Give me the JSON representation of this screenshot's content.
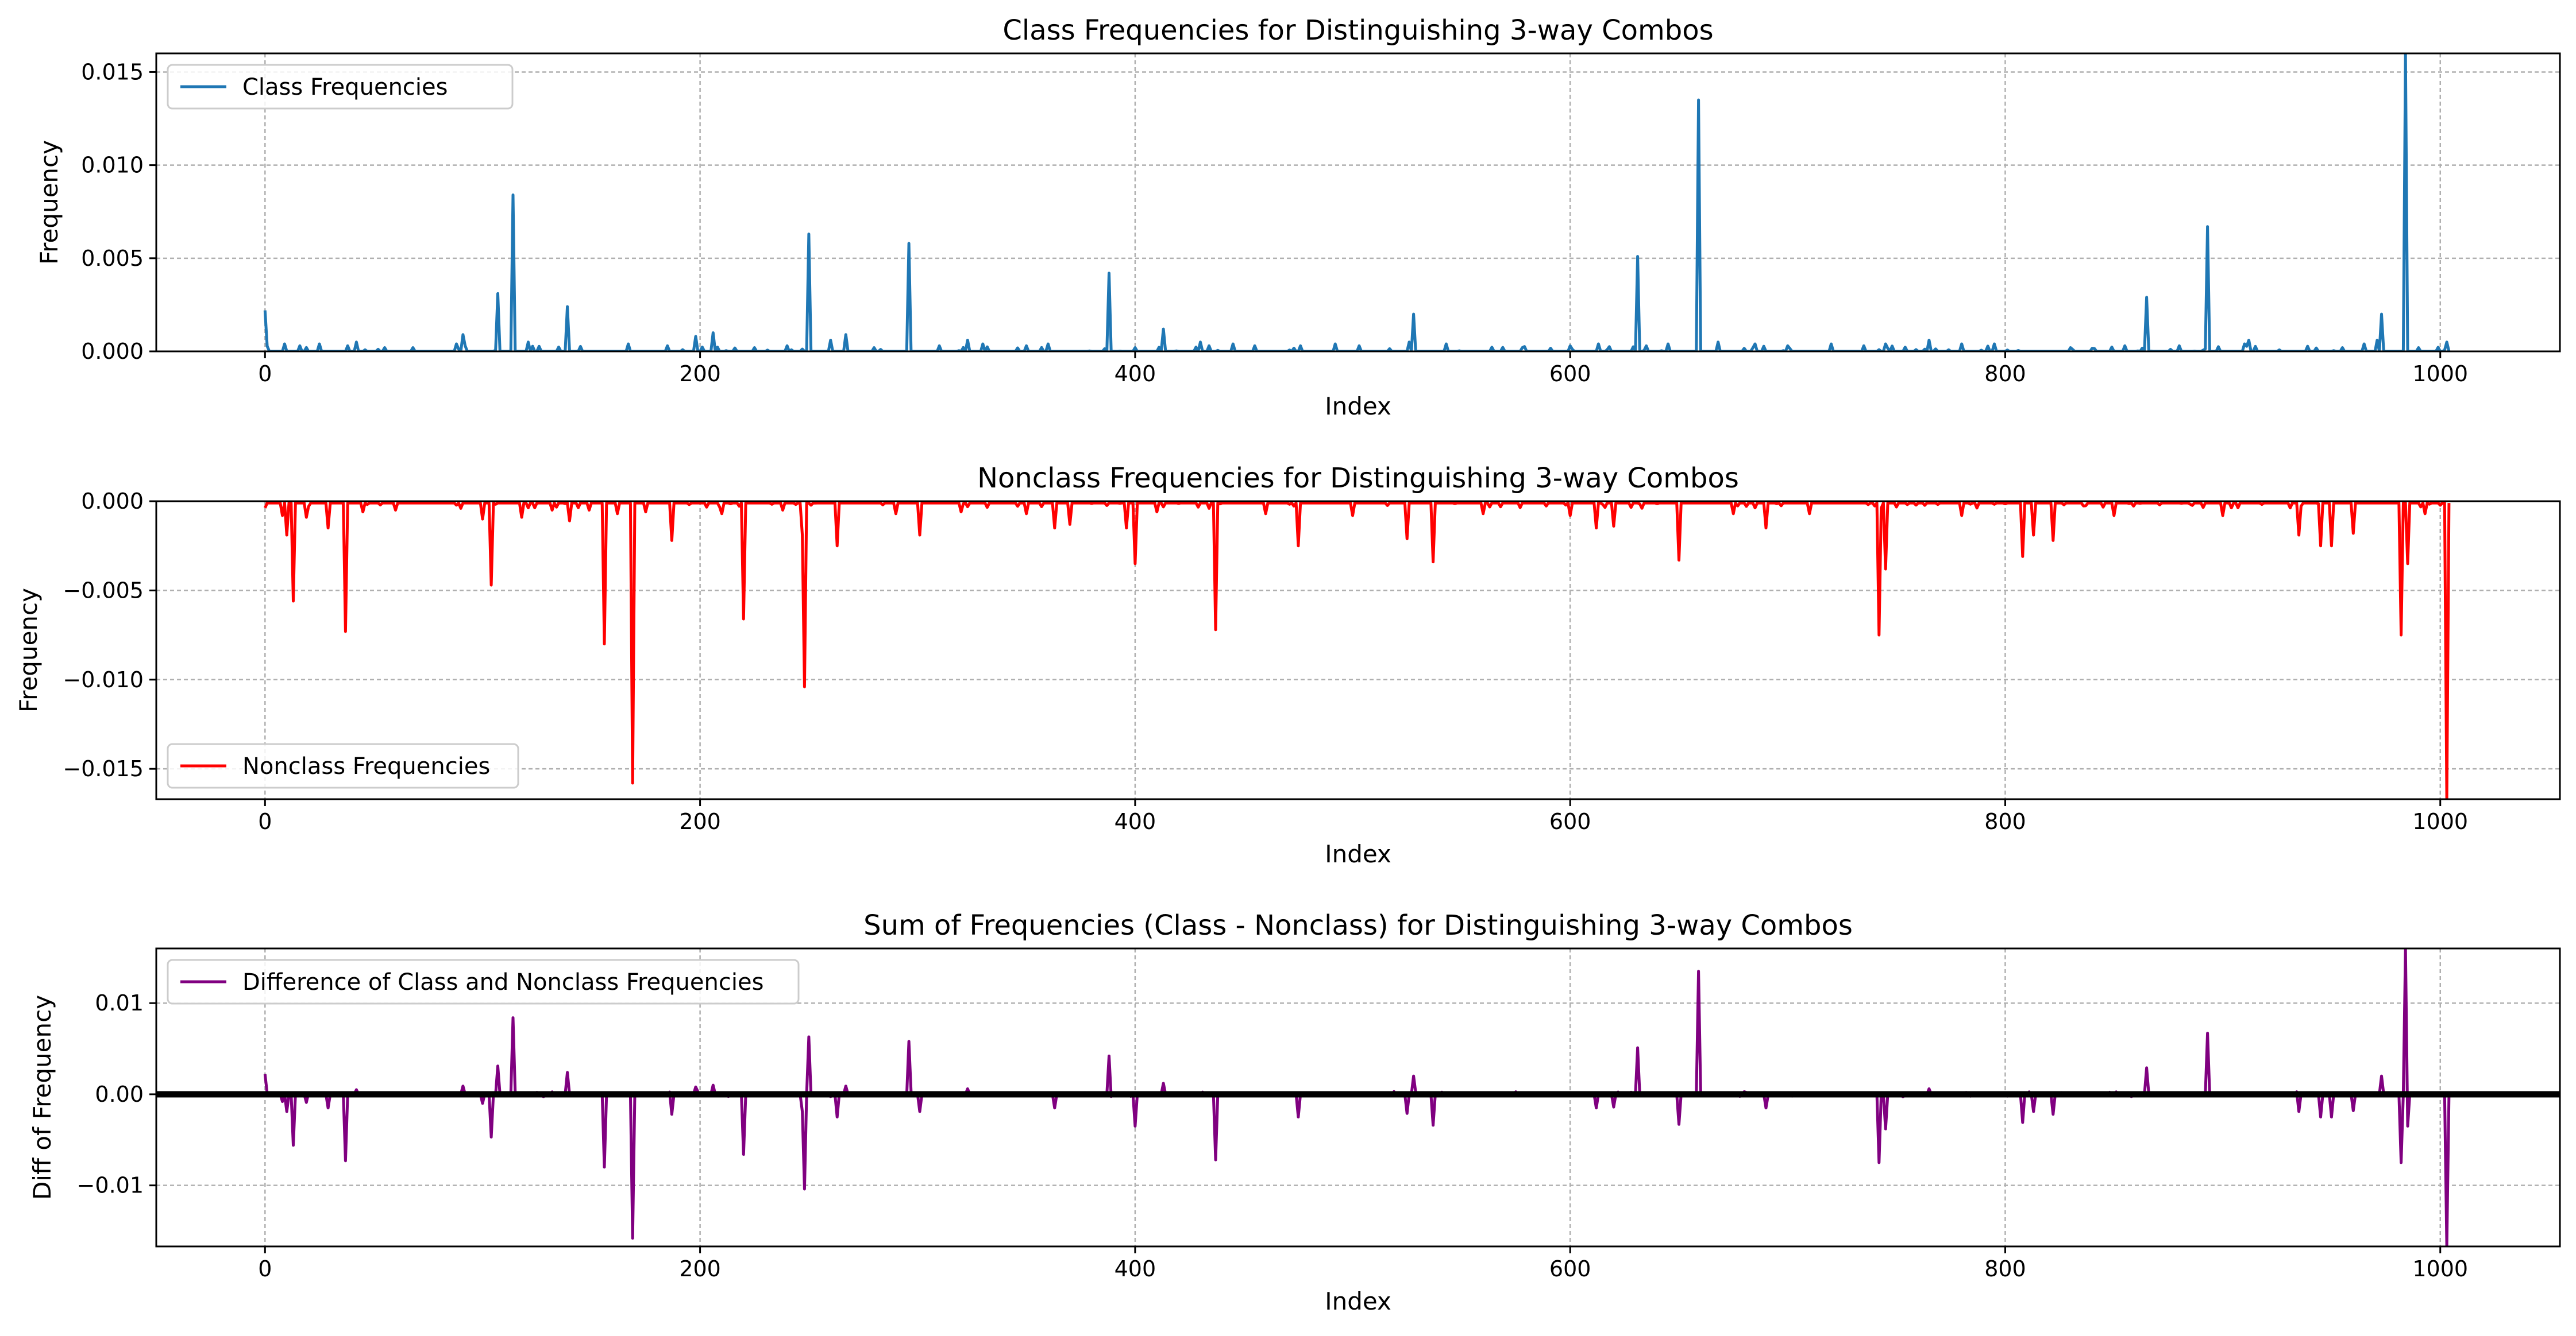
{
  "chart_data": [
    {
      "type": "line",
      "title": "Class Frequencies for Distinguishing 3-way Combos",
      "xlabel": "Index",
      "ylabel": "Frequency",
      "xlim": [
        -50,
        1055
      ],
      "ylim": [
        0,
        0.016
      ],
      "xticks": [
        0,
        200,
        400,
        600,
        800,
        1000
      ],
      "xtick_labels": [
        "0",
        "200",
        "400",
        "600",
        "800",
        "1000"
      ],
      "yticks": [
        0,
        0.005,
        0.01,
        0.015
      ],
      "ytick_labels": [
        "0.000",
        "0.005",
        "0.010",
        "0.015"
      ],
      "grid": true,
      "legend_position": "top-left",
      "zero_line": false,
      "series": [
        {
          "name": "Class Frequencies",
          "color": "#1f77b4",
          "baseline": 0,
          "points": [
            [
              0,
              0.0022
            ],
            [
              9,
              0.0004
            ],
            [
              16,
              0.0003
            ],
            [
              25,
              0.0004
            ],
            [
              38,
              0.0003
            ],
            [
              42,
              0.0005
            ],
            [
              55,
              0.0002
            ],
            [
              68,
              0.0002
            ],
            [
              88,
              0.0004
            ],
            [
              91,
              0.0009
            ],
            [
              107,
              0.0031
            ],
            [
              114,
              0.0084
            ],
            [
              121,
              0.0005
            ],
            [
              139,
              0.0024
            ],
            [
              167,
              0.0004
            ],
            [
              185,
              0.0003
            ],
            [
              198,
              0.0008
            ],
            [
              206,
              0.001
            ],
            [
              225,
              0.0002
            ],
            [
              240,
              0.0003
            ],
            [
              250,
              0.0063
            ],
            [
              260,
              0.0006
            ],
            [
              267,
              0.0009
            ],
            [
              280,
              0.0002
            ],
            [
              296,
              0.0058
            ],
            [
              310,
              0.0003
            ],
            [
              323,
              0.0006
            ],
            [
              330,
              0.0004
            ],
            [
              350,
              0.0003
            ],
            [
              360,
              0.0004
            ],
            [
              388,
              0.0042
            ],
            [
              400,
              0.0002
            ],
            [
              413,
              0.0012
            ],
            [
              430,
              0.0005
            ],
            [
              445,
              0.0004
            ],
            [
              455,
              0.0003
            ],
            [
              476,
              0.0003
            ],
            [
              492,
              0.0004
            ],
            [
              503,
              0.0003
            ],
            [
              526,
              0.0005
            ],
            [
              528,
              0.002
            ],
            [
              543,
              0.0004
            ],
            [
              578,
              0.0002
            ],
            [
              600,
              0.0003
            ],
            [
              613,
              0.0004
            ],
            [
              631,
              0.0051
            ],
            [
              645,
              0.0004
            ],
            [
              659,
              0.0135
            ],
            [
              668,
              0.0005
            ],
            [
              685,
              0.0004
            ],
            [
              700,
              0.0003
            ],
            [
              720,
              0.0004
            ],
            [
              735,
              0.0003
            ],
            [
              745,
              0.0004
            ],
            [
              765,
              0.0006
            ],
            [
              780,
              0.0004
            ],
            [
              795,
              0.0004
            ],
            [
              830,
              0.0002
            ],
            [
              855,
              0.0003
            ],
            [
              865,
              0.0029
            ],
            [
              880,
              0.0003
            ],
            [
              893,
              0.0067
            ],
            [
              910,
              0.0004
            ],
            [
              912,
              0.0006
            ],
            [
              955,
              0.0002
            ],
            [
              965,
              0.0004
            ],
            [
              971,
              0.0006
            ],
            [
              973,
              0.002
            ],
            [
              984,
              0.016
            ],
            [
              990,
              0.0002
            ],
            [
              1003,
              0.0005
            ]
          ]
        }
      ]
    },
    {
      "type": "line",
      "title": "Nonclass Frequencies for Distinguishing 3-way Combos",
      "xlabel": "Index",
      "ylabel": "Frequency",
      "xlim": [
        -50,
        1055
      ],
      "ylim": [
        -0.0167,
        0
      ],
      "xticks": [
        0,
        200,
        400,
        600,
        800,
        1000
      ],
      "xtick_labels": [
        "0",
        "200",
        "400",
        "600",
        "800",
        "1000"
      ],
      "yticks": [
        -0.015,
        -0.01,
        -0.005,
        0
      ],
      "ytick_labels": [
        "−0.015",
        "−0.010",
        "−0.005",
        "0.000"
      ],
      "grid": true,
      "legend_position": "bottom-left",
      "zero_line": false,
      "series": [
        {
          "name": "Nonclass Frequencies",
          "color": "#ff0000",
          "baseline": -0.0001,
          "points": [
            [
              8,
              -0.0008
            ],
            [
              10,
              -0.0019
            ],
            [
              13,
              -0.0056
            ],
            [
              19,
              -0.0009
            ],
            [
              29,
              -0.0015
            ],
            [
              37,
              -0.0073
            ],
            [
              45,
              -0.0006
            ],
            [
              60,
              -0.0005
            ],
            [
              100,
              -0.001
            ],
            [
              104,
              -0.0047
            ],
            [
              118,
              -0.0009
            ],
            [
              132,
              -0.0005
            ],
            [
              140,
              -0.0011
            ],
            [
              149,
              -0.0005
            ],
            [
              156,
              -0.008
            ],
            [
              162,
              -0.0007
            ],
            [
              169,
              -0.0158
            ],
            [
              175,
              -0.0006
            ],
            [
              187,
              -0.0022
            ],
            [
              210,
              -0.0007
            ],
            [
              220,
              -0.0066
            ],
            [
              238,
              -0.0005
            ],
            [
              247,
              -0.0019
            ],
            [
              248,
              -0.0104
            ],
            [
              263,
              -0.0025
            ],
            [
              290,
              -0.0007
            ],
            [
              301,
              -0.0019
            ],
            [
              320,
              -0.0006
            ],
            [
              350,
              -0.0007
            ],
            [
              363,
              -0.0015
            ],
            [
              370,
              -0.0013
            ],
            [
              396,
              -0.0015
            ],
            [
              400,
              -0.0035
            ],
            [
              410,
              -0.0006
            ],
            [
              437,
              -0.0072
            ],
            [
              460,
              -0.0007
            ],
            [
              475,
              -0.0025
            ],
            [
              500,
              -0.0008
            ],
            [
              525,
              -0.0021
            ],
            [
              537,
              -0.0034
            ],
            [
              560,
              -0.0007
            ],
            [
              600,
              -0.0008
            ],
            [
              612,
              -0.0015
            ],
            [
              620,
              -0.0014
            ],
            [
              650,
              -0.0033
            ],
            [
              675,
              -0.0007
            ],
            [
              690,
              -0.0015
            ],
            [
              710,
              -0.0007
            ],
            [
              742,
              -0.0075
            ],
            [
              745,
              -0.0038
            ],
            [
              780,
              -0.0008
            ],
            [
              808,
              -0.0031
            ],
            [
              813,
              -0.0019
            ],
            [
              822,
              -0.0022
            ],
            [
              850,
              -0.0008
            ],
            [
              900,
              -0.0008
            ],
            [
              935,
              -0.0019
            ],
            [
              945,
              -0.0025
            ],
            [
              950,
              -0.0025
            ],
            [
              960,
              -0.0018
            ],
            [
              982,
              -0.0075
            ],
            [
              985,
              -0.0035
            ],
            [
              993,
              -0.0007
            ],
            [
              1003,
              -0.0167
            ]
          ]
        }
      ]
    },
    {
      "type": "line",
      "title": "Sum of Frequencies (Class - Nonclass) for Distinguishing 3-way Combos",
      "xlabel": "Index",
      "ylabel": "Diff of Frequency",
      "xlim": [
        -50,
        1055
      ],
      "ylim": [
        -0.0167,
        0.016
      ],
      "xticks": [
        0,
        200,
        400,
        600,
        800,
        1000
      ],
      "xtick_labels": [
        "0",
        "200",
        "400",
        "600",
        "800",
        "1000"
      ],
      "yticks": [
        -0.01,
        0,
        0.01
      ],
      "ytick_labels": [
        "−0.01",
        "0.00",
        "0.01"
      ],
      "grid": true,
      "legend_position": "top-left",
      "zero_line": true,
      "series": [
        {
          "name": "Difference of Class and Nonclass Frequencies",
          "color": "#800080",
          "baseline": 0,
          "points": [
            [
              0,
              0.0022
            ],
            [
              8,
              -0.0008
            ],
            [
              10,
              -0.0019
            ],
            [
              13,
              -0.0056
            ],
            [
              19,
              -0.0009
            ],
            [
              29,
              -0.0015
            ],
            [
              37,
              -0.0073
            ],
            [
              42,
              0.0005
            ],
            [
              91,
              0.0009
            ],
            [
              100,
              -0.001
            ],
            [
              104,
              -0.0047
            ],
            [
              107,
              0.0031
            ],
            [
              114,
              0.0084
            ],
            [
              139,
              0.0024
            ],
            [
              156,
              -0.008
            ],
            [
              169,
              -0.0158
            ],
            [
              187,
              -0.0022
            ],
            [
              198,
              0.0008
            ],
            [
              206,
              0.001
            ],
            [
              220,
              -0.0066
            ],
            [
              247,
              -0.0019
            ],
            [
              248,
              -0.0104
            ],
            [
              250,
              0.0063
            ],
            [
              263,
              -0.0025
            ],
            [
              267,
              0.0009
            ],
            [
              296,
              0.0058
            ],
            [
              301,
              -0.0019
            ],
            [
              323,
              0.0006
            ],
            [
              363,
              -0.0015
            ],
            [
              388,
              0.0042
            ],
            [
              400,
              -0.0035
            ],
            [
              413,
              0.0012
            ],
            [
              437,
              -0.0072
            ],
            [
              475,
              -0.0025
            ],
            [
              525,
              -0.0021
            ],
            [
              528,
              0.002
            ],
            [
              537,
              -0.0034
            ],
            [
              612,
              -0.0015
            ],
            [
              620,
              -0.0014
            ],
            [
              631,
              0.0051
            ],
            [
              650,
              -0.0033
            ],
            [
              659,
              0.0135
            ],
            [
              690,
              -0.0015
            ],
            [
              742,
              -0.0075
            ],
            [
              745,
              -0.0038
            ],
            [
              765,
              0.0006
            ],
            [
              808,
              -0.0031
            ],
            [
              813,
              -0.0019
            ],
            [
              822,
              -0.0022
            ],
            [
              865,
              0.0029
            ],
            [
              893,
              0.0067
            ],
            [
              935,
              -0.0019
            ],
            [
              945,
              -0.0025
            ],
            [
              950,
              -0.0025
            ],
            [
              960,
              -0.0018
            ],
            [
              973,
              0.002
            ],
            [
              982,
              -0.0075
            ],
            [
              984,
              0.016
            ],
            [
              985,
              -0.0035
            ],
            [
              1003,
              -0.0167
            ]
          ]
        }
      ]
    }
  ]
}
